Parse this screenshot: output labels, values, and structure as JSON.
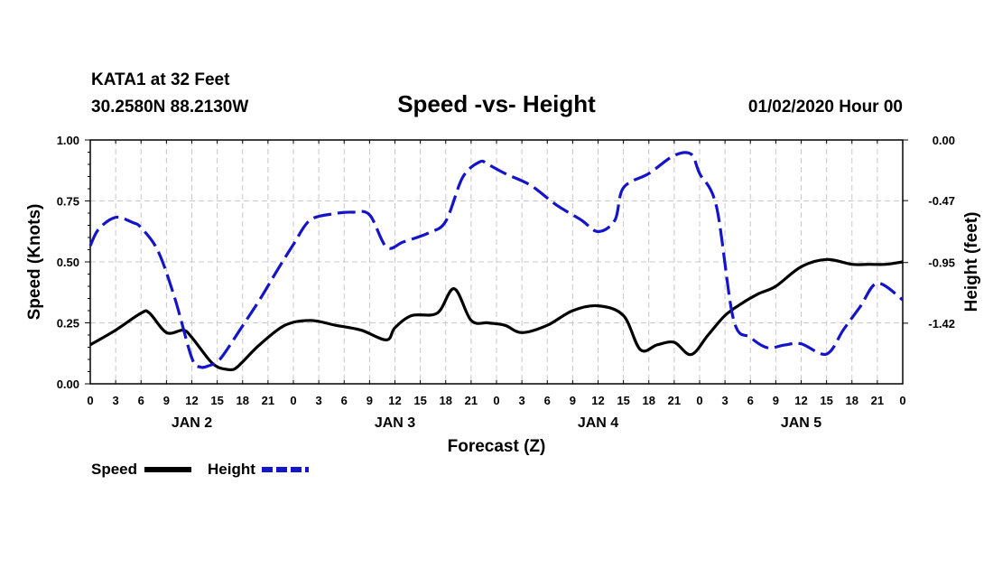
{
  "header": {
    "station": "KATA1 at 32 Feet",
    "coords": "30.2580N 88.2130W",
    "title": "Speed -vs- Height",
    "datetime": "01/02/2020 Hour 00"
  },
  "colors": {
    "speed": "#000000",
    "height": "#1414c8",
    "grid": "#c8c8c8"
  },
  "chart_data": {
    "type": "line",
    "title": "Speed -vs- Height",
    "xlabel": "Forecast (Z)",
    "ylabel": "Speed (Knots)",
    "y2label": "Height (feet)",
    "xlim": [
      0,
      96
    ],
    "ylim": [
      0,
      1
    ],
    "y2lim": [
      -1.89,
      0.0
    ],
    "yticks": [
      "0.00",
      "0.25",
      "0.50",
      "0.75",
      "1.00"
    ],
    "y2ticks": [
      "0.00",
      "-0.47",
      "-0.95",
      "-1.42"
    ],
    "y2tick_values": [
      0.0,
      -0.47,
      -0.95,
      -1.42
    ],
    "xtick_labels": [
      "0",
      "3",
      "6",
      "9",
      "12",
      "15",
      "18",
      "21",
      "0",
      "3",
      "6",
      "9",
      "12",
      "15",
      "18",
      "21",
      "0",
      "3",
      "6",
      "9",
      "12",
      "15",
      "18",
      "21",
      "0",
      "3",
      "6",
      "9",
      "12",
      "15",
      "18",
      "21",
      "0"
    ],
    "day_labels": [
      {
        "label": "JAN 2",
        "hour": 12
      },
      {
        "label": "JAN 3",
        "hour": 36
      },
      {
        "label": "JAN 4",
        "hour": 60
      },
      {
        "label": "JAN 5",
        "hour": 84
      }
    ],
    "series": [
      {
        "name": "Speed",
        "axis": "left",
        "style": "solid",
        "x": [
          0,
          3,
          6,
          7,
          9,
          11,
          12,
          14,
          15,
          16,
          17,
          18,
          20,
          23,
          26,
          29,
          32,
          35,
          36,
          38,
          41,
          43,
          45,
          47,
          49,
          51,
          54,
          57,
          60,
          63,
          65,
          67,
          69,
          71,
          73,
          75,
          77,
          79,
          81,
          84,
          87,
          90,
          92,
          94,
          96
        ],
        "y": [
          0.16,
          0.22,
          0.29,
          0.29,
          0.21,
          0.22,
          0.19,
          0.1,
          0.07,
          0.06,
          0.06,
          0.09,
          0.16,
          0.24,
          0.26,
          0.24,
          0.22,
          0.18,
          0.23,
          0.28,
          0.29,
          0.39,
          0.26,
          0.25,
          0.24,
          0.21,
          0.24,
          0.3,
          0.32,
          0.28,
          0.14,
          0.16,
          0.17,
          0.12,
          0.2,
          0.28,
          0.33,
          0.37,
          0.4,
          0.48,
          0.51,
          0.49,
          0.49,
          0.49,
          0.5
        ]
      },
      {
        "name": "Height",
        "axis": "right",
        "style": "dashed",
        "x": [
          0,
          1,
          3,
          5,
          6,
          8,
          10,
          12,
          13,
          14,
          15,
          16,
          18,
          20,
          22,
          24,
          26,
          29,
          31,
          33,
          35,
          37,
          40,
          42,
          44,
          46,
          47,
          49,
          52,
          55,
          58,
          60,
          62,
          63,
          66,
          69,
          71,
          72,
          74,
          76,
          78,
          80,
          82,
          84,
          87,
          89,
          91,
          93,
          96
        ],
        "y": [
          -0.82,
          -0.69,
          -0.6,
          -0.64,
          -0.68,
          -0.86,
          -1.23,
          -1.69,
          -1.76,
          -1.75,
          -1.72,
          -1.64,
          -1.44,
          -1.24,
          -1.02,
          -0.81,
          -0.62,
          -0.57,
          -0.56,
          -0.58,
          -0.83,
          -0.79,
          -0.72,
          -0.63,
          -0.29,
          -0.17,
          -0.19,
          -0.26,
          -0.35,
          -0.5,
          -0.62,
          -0.71,
          -0.62,
          -0.37,
          -0.26,
          -0.12,
          -0.11,
          -0.26,
          -0.52,
          -1.39,
          -1.53,
          -1.61,
          -1.59,
          -1.58,
          -1.66,
          -1.47,
          -1.29,
          -1.11,
          -1.24
        ]
      }
    ],
    "legend": [
      "Speed",
      "Height"
    ],
    "legend_position": "bottom-left"
  }
}
